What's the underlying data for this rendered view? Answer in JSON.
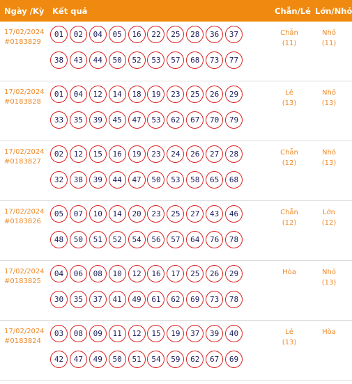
{
  "header": {
    "date_label": "Ngày /Kỳ",
    "result_label": "Kết quả",
    "parity_label": "Chẵn/Lẻ",
    "size_label": "Lớn/Nhỏ"
  },
  "rows": [
    {
      "date": "17/02/2024",
      "draw": "#0183829",
      "numbers": [
        "01",
        "02",
        "04",
        "05",
        "16",
        "22",
        "25",
        "28",
        "36",
        "37",
        "38",
        "43",
        "44",
        "50",
        "52",
        "53",
        "57",
        "68",
        "73",
        "77"
      ],
      "parity": "Chẵn",
      "parity_count": "(11)",
      "size": "Nhỏ",
      "size_count": "(11)"
    },
    {
      "date": "17/02/2024",
      "draw": "#0183828",
      "numbers": [
        "01",
        "04",
        "12",
        "14",
        "18",
        "19",
        "23",
        "25",
        "26",
        "29",
        "33",
        "35",
        "39",
        "45",
        "47",
        "53",
        "62",
        "67",
        "70",
        "79"
      ],
      "parity": "Lẻ",
      "parity_count": "(13)",
      "size": "Nhỏ",
      "size_count": "(13)"
    },
    {
      "date": "17/02/2024",
      "draw": "#0183827",
      "numbers": [
        "02",
        "12",
        "15",
        "16",
        "19",
        "23",
        "24",
        "26",
        "27",
        "28",
        "32",
        "38",
        "39",
        "44",
        "47",
        "50",
        "53",
        "58",
        "65",
        "68"
      ],
      "parity": "Chẵn",
      "parity_count": "(12)",
      "size": "Nhỏ",
      "size_count": "(13)"
    },
    {
      "date": "17/02/2024",
      "draw": "#0183826",
      "numbers": [
        "05",
        "07",
        "10",
        "14",
        "20",
        "23",
        "25",
        "27",
        "43",
        "46",
        "48",
        "50",
        "51",
        "52",
        "54",
        "56",
        "57",
        "64",
        "76",
        "78"
      ],
      "parity": "Chẵn",
      "parity_count": "(12)",
      "size": "Lớn",
      "size_count": "(12)"
    },
    {
      "date": "17/02/2024",
      "draw": "#0183825",
      "numbers": [
        "04",
        "06",
        "08",
        "10",
        "12",
        "16",
        "17",
        "25",
        "26",
        "29",
        "30",
        "35",
        "37",
        "41",
        "49",
        "61",
        "62",
        "69",
        "73",
        "78"
      ],
      "parity": "Hòa",
      "parity_count": "",
      "size": "Nhỏ",
      "size_count": "(13)"
    },
    {
      "date": "17/02/2024",
      "draw": "#0183824",
      "numbers": [
        "03",
        "08",
        "09",
        "11",
        "12",
        "15",
        "19",
        "37",
        "39",
        "40",
        "42",
        "47",
        "49",
        "50",
        "51",
        "54",
        "59",
        "62",
        "67",
        "69"
      ],
      "parity": "Lẻ",
      "parity_count": "(13)",
      "size": "Hòa",
      "size_count": ""
    }
  ]
}
